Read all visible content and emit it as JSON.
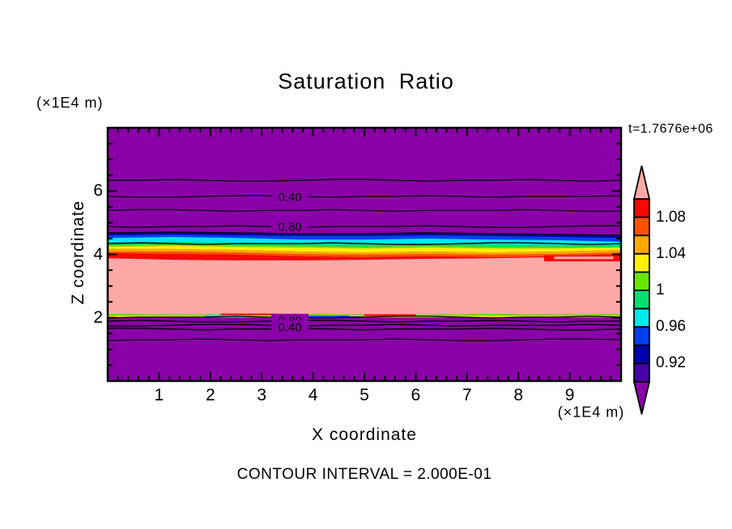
{
  "title": "Saturation Ratio",
  "time_label": "t=1.7676e+06",
  "footer": "CONTOUR INTERVAL = 2.000E-01",
  "axes": {
    "x": {
      "label": "X coordinate",
      "unit": "(×1E4 m)",
      "min": 0,
      "max": 10,
      "major_ticks": [
        1,
        2,
        3,
        4,
        5,
        6,
        7,
        8,
        9
      ],
      "tick_labels": [
        "1",
        "2",
        "3",
        "4",
        "5",
        "6",
        "7",
        "8",
        "9"
      ],
      "minor_step": 0.2
    },
    "y": {
      "label": "Z coordinate",
      "unit": "(×1E4 m)",
      "min": 0,
      "max": 8,
      "major_ticks": [
        2,
        4,
        6
      ],
      "tick_labels": [
        "2",
        "4",
        "6"
      ],
      "minor_step": 0.5
    }
  },
  "colors": {
    "purple": "#8A00A8",
    "indigo": "#4800A8",
    "navy": "#0000B0",
    "blue": "#0040F0",
    "cyan": "#00E8F0",
    "green": "#00E070",
    "chartreuse": "#66E800",
    "yellow": "#FFF000",
    "orange": "#FFA800",
    "orangered": "#FF5000",
    "red": "#F50800",
    "pink": "#FFA8A8",
    "frame": "#000000",
    "background": "#FFFFFF"
  },
  "chart_data": {
    "type": "heatmap",
    "subtype": "filled_contour",
    "title": "Saturation Ratio",
    "contour_interval": 0.2,
    "legend_position": "right",
    "colorbar": {
      "orientation": "vertical",
      "above_color": "pink",
      "below_color": "purple",
      "cells_top_to_bottom": [
        "red",
        "orangered",
        "orange",
        "yellow",
        "chartreuse",
        "green",
        "cyan",
        "blue",
        "navy",
        "indigo"
      ],
      "labels": [
        {
          "text": "1.08",
          "after_cell": 1
        },
        {
          "text": "1.04",
          "after_cell": 3
        },
        {
          "text": "1",
          "after_cell": 5
        },
        {
          "text": "0.96",
          "after_cell": 7
        },
        {
          "text": "0.92",
          "after_cell": 9
        }
      ]
    },
    "bands": [
      {
        "color": "navy",
        "top_z": [
          4.68,
          4.7,
          4.68,
          4.65,
          4.65,
          4.68,
          4.65,
          4.63,
          4.6
        ]
      },
      {
        "color": "blue",
        "top_z": [
          4.6,
          4.63,
          4.6,
          4.58,
          4.58,
          4.6,
          4.58,
          4.55,
          4.52
        ]
      },
      {
        "color": "cyan",
        "top_z": [
          4.52,
          4.55,
          4.52,
          4.47,
          4.47,
          4.5,
          4.47,
          4.45,
          4.4
        ]
      },
      {
        "color": "green",
        "top_z": [
          4.37,
          4.4,
          4.37,
          4.34,
          4.32,
          4.34,
          4.32,
          4.29,
          4.29
        ]
      },
      {
        "color": "chartreuse",
        "top_z": [
          4.29,
          4.32,
          4.29,
          4.27,
          4.24,
          4.27,
          4.24,
          4.24,
          4.24
        ]
      },
      {
        "color": "yellow",
        "top_z": [
          4.24,
          4.27,
          4.24,
          4.22,
          4.19,
          4.22,
          4.19,
          4.19,
          4.22
        ]
      },
      {
        "color": "orange",
        "top_z": [
          4.17,
          4.17,
          4.14,
          4.09,
          4.06,
          4.09,
          4.06,
          4.09,
          4.14
        ]
      },
      {
        "color": "orangered",
        "top_z": [
          4.09,
          4.09,
          4.06,
          4.01,
          3.99,
          4.01,
          3.99,
          4.01,
          4.06
        ]
      },
      {
        "color": "red",
        "top_z": [
          4.04,
          4.01,
          3.99,
          3.94,
          3.91,
          3.94,
          3.91,
          3.94,
          4.01
        ]
      },
      {
        "color": "pink",
        "top_z": [
          3.88,
          3.83,
          3.81,
          3.81,
          3.83,
          3.86,
          3.88,
          3.91,
          3.81
        ]
      },
      {
        "color": "chartreuse",
        "top_z": [
          2.12,
          2.1,
          2.1,
          2.12,
          2.1,
          2.1,
          2.12,
          2.1,
          2.12
        ]
      },
      {
        "color": "yellow",
        "top_z": [
          2.06,
          2.06,
          2.05,
          2.06,
          2.06,
          2.05,
          2.06,
          2.06,
          2.06
        ]
      }
    ],
    "bands_bottom_z": [
      2.01,
      2.01,
      2.01,
      2.01,
      2.01,
      2.01,
      2.01,
      2.01,
      2.01
    ],
    "patches": [
      {
        "color": "red",
        "x0": 0.85,
        "x1": 1.0,
        "z_top": 3.97,
        "z_bottom": 3.78
      },
      {
        "color": "pink",
        "x0": 0.87,
        "x1": 0.985,
        "z_top": 3.93,
        "z_bottom": 3.85
      },
      {
        "color": "red",
        "x0": 0.22,
        "x1": 0.33,
        "z_top": 2.13,
        "z_bottom": 2.08
      },
      {
        "color": "red",
        "x0": 0.5,
        "x1": 0.6,
        "z_top": 2.11,
        "z_bottom": 2.05
      },
      {
        "color": "cyan",
        "x0": 0.19,
        "x1": 0.27,
        "z_top": 2.08,
        "z_bottom": 2.02
      },
      {
        "color": "blue",
        "x0": 0.37,
        "x1": 0.47,
        "z_top": 2.06,
        "z_bottom": 2.0
      },
      {
        "color": "navy",
        "x0": 0.45,
        "x1": 0.5,
        "z_top": 2.04,
        "z_bottom": 2.0
      }
    ],
    "contour_lines_z": [
      6.34,
      5.83,
      5.39,
      4.88,
      4.34,
      2.02,
      1.89,
      1.76,
      1.64,
      1.3
    ],
    "contour_labels": [
      {
        "text": "0.40",
        "x": 3.55,
        "z": 5.83
      },
      {
        "text": "0.80",
        "x": 3.55,
        "z": 4.88
      },
      {
        "text": "0.80",
        "x": 3.55,
        "z": 1.92
      },
      {
        "text": "0.40",
        "x": 3.55,
        "z": 1.71
      }
    ]
  }
}
